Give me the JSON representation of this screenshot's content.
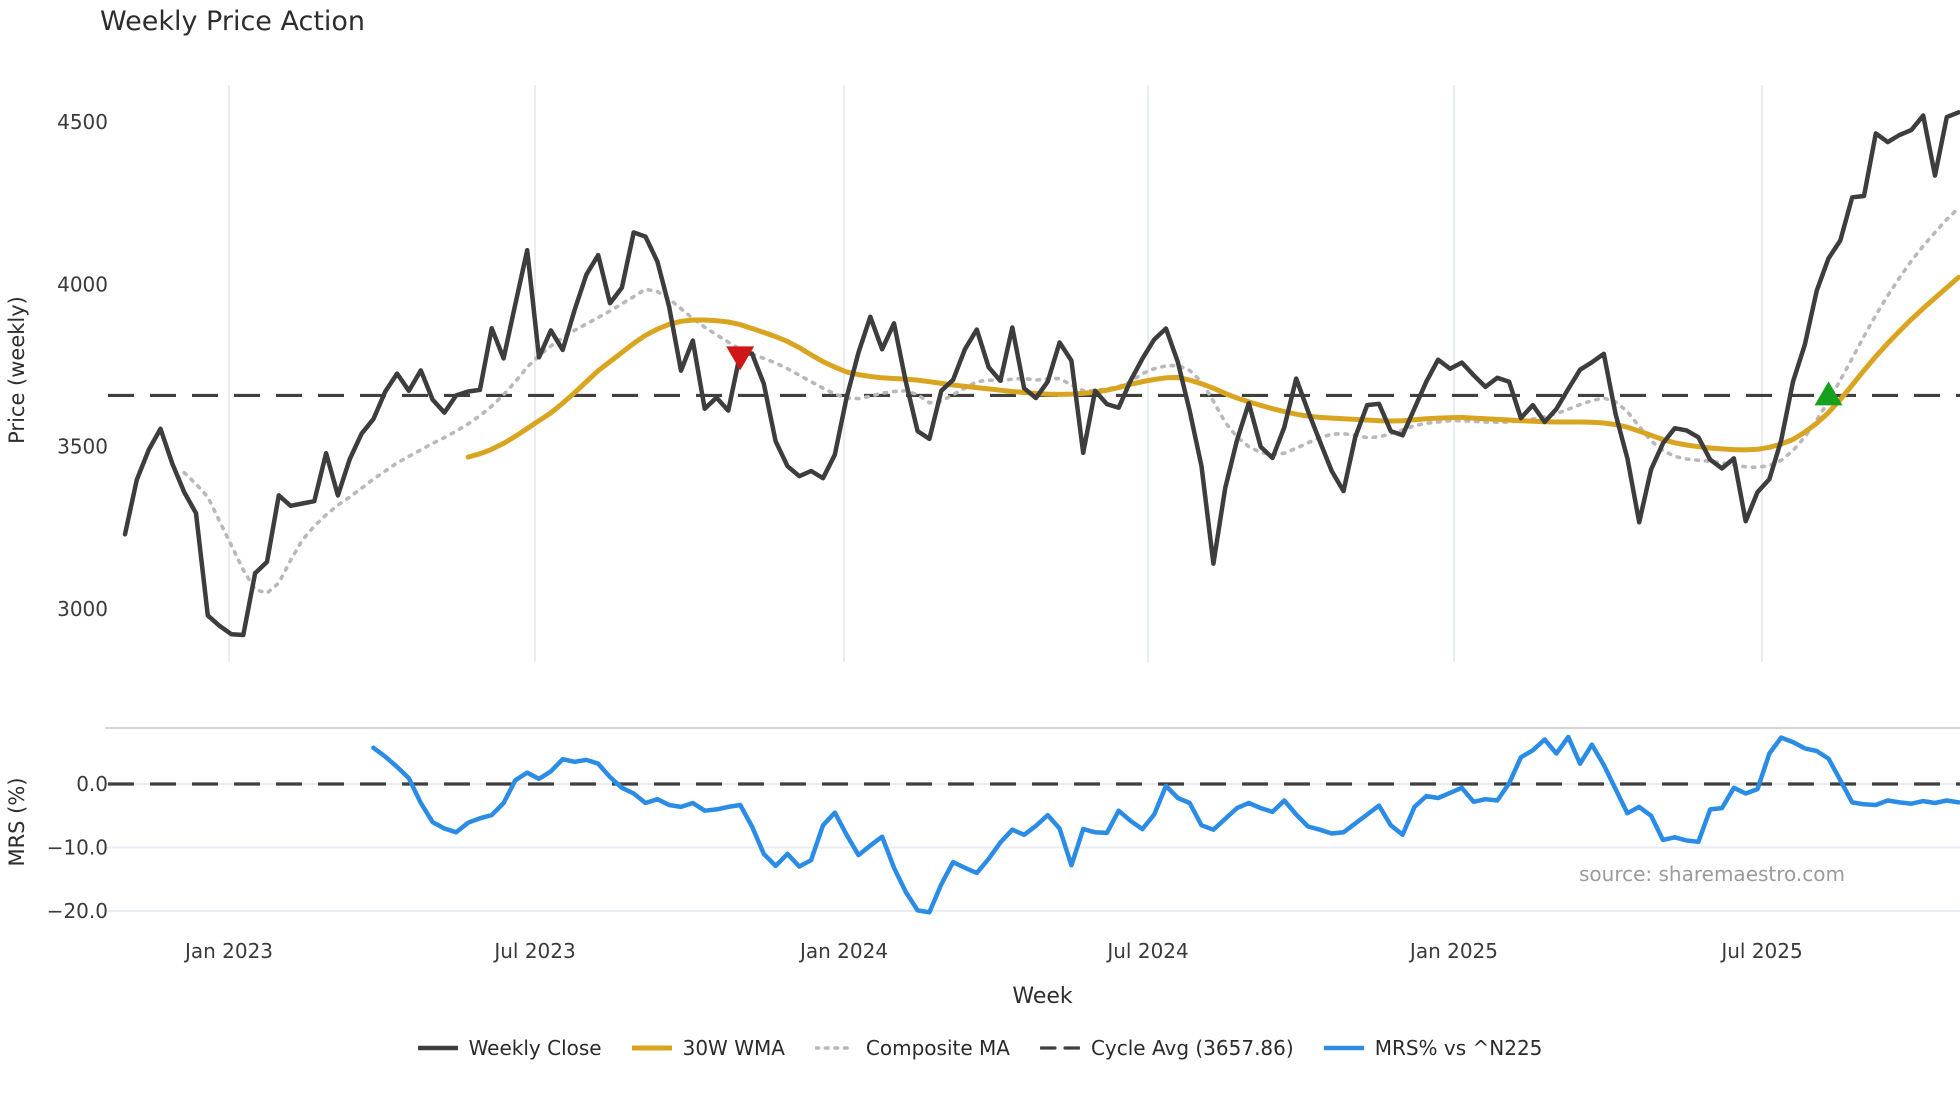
{
  "title": "Weekly Price Action",
  "source_text": "source: sharemaestro.com",
  "colors": {
    "close": "#3d3d3d",
    "wma": "#d9a521",
    "composite": "#b9b9b9",
    "cycle": "#3f3f3f",
    "mrs": "#2b8ce6",
    "sell_marker": "#cf1717",
    "buy_marker": "#17a01d",
    "grid": "#e9ecf2",
    "panel_border": "#d4d4d8",
    "tick_text": "#3a3a3a"
  },
  "legend": {
    "items": [
      {
        "label": "Weekly Close",
        "swatch": "solid-dark"
      },
      {
        "label": "30W WMA",
        "swatch": "solid-gold"
      },
      {
        "label": "Composite MA",
        "swatch": "dotted-grey"
      },
      {
        "label": "Cycle Avg (3657.86)",
        "swatch": "dashed-dark"
      },
      {
        "label": "MRS% vs ^N225",
        "swatch": "solid-blue"
      }
    ]
  },
  "chart_data": {
    "type": "line",
    "title": "Weekly Price Action",
    "xlabel": "Week",
    "x_is_weekly_index": true,
    "xticks": {
      "labels": [
        "Jan 2023",
        "Jul 2023",
        "Jan 2024",
        "Jul 2024",
        "Jan 2025",
        "Jul 2025"
      ],
      "week_index": [
        8.79,
        34.66,
        60.78,
        86.48,
        112.34,
        138.38
      ]
    },
    "price_panel": {
      "ylabel": "Price (weekly)",
      "yticks": [
        4500,
        4000,
        3500,
        3000
      ],
      "ylim": [
        2837,
        4614
      ],
      "cycle_avg": 3657.86,
      "grid": "vertical-only"
    },
    "mrs_panel": {
      "ylabel": "MRS (%)",
      "ytick_values": [
        0,
        -10,
        -20
      ],
      "ytick_labels": [
        "0.0",
        "−10.0",
        "−20.0"
      ],
      "ylim": [
        -21.5,
        8.8
      ],
      "zero_line": "dashed",
      "grid": "horizontal-only"
    },
    "markers": [
      {
        "type": "sell",
        "shape": "triangle-down",
        "week": 52,
        "price": 3775
      },
      {
        "type": "buy",
        "shape": "triangle-up",
        "week": 144,
        "price": 3657.86
      }
    ],
    "series": [
      {
        "name": "Weekly Close",
        "panel": "price",
        "values": [
          3230,
          3398,
          3490,
          3555,
          3448,
          3360,
          3295,
          2980,
          2948,
          2922,
          2920,
          3110,
          3145,
          3350,
          3318,
          3325,
          3332,
          3480,
          3350,
          3462,
          3540,
          3585,
          3670,
          3725,
          3672,
          3735,
          3645,
          3605,
          3658,
          3670,
          3675,
          3865,
          3772,
          3940,
          4105,
          3775,
          3858,
          3798,
          3920,
          4030,
          4090,
          3942,
          3990,
          4160,
          4147,
          4070,
          3930,
          3734,
          3827,
          3617,
          3651,
          3611,
          3787,
          3787,
          3694,
          3517,
          3440,
          3409,
          3425,
          3403,
          3475,
          3651,
          3790,
          3900,
          3800,
          3880,
          3700,
          3548,
          3524,
          3672,
          3706,
          3800,
          3861,
          3745,
          3703,
          3867,
          3680,
          3650,
          3700,
          3821,
          3765,
          3481,
          3672,
          3631,
          3620,
          3703,
          3771,
          3830,
          3864,
          3760,
          3610,
          3440,
          3140,
          3372,
          3520,
          3634,
          3500,
          3465,
          3560,
          3710,
          3610,
          3517,
          3425,
          3363,
          3530,
          3628,
          3632,
          3548,
          3535,
          3618,
          3700,
          3768,
          3740,
          3759,
          3720,
          3684,
          3712,
          3700,
          3588,
          3628,
          3576,
          3616,
          3678,
          3737,
          3760,
          3786,
          3600,
          3464,
          3267,
          3430,
          3510,
          3557,
          3550,
          3529,
          3460,
          3433,
          3464,
          3270,
          3360,
          3400,
          3520,
          3700,
          3815,
          3980,
          4080,
          4135,
          4268,
          4272,
          4465,
          4438,
          4460,
          4475,
          4520,
          4335,
          4515,
          4530
        ]
      },
      {
        "name": "30W WMA",
        "panel": "price",
        "values": [
          null,
          null,
          null,
          null,
          null,
          null,
          null,
          null,
          null,
          null,
          null,
          null,
          null,
          null,
          null,
          null,
          null,
          null,
          null,
          null,
          null,
          null,
          null,
          null,
          null,
          null,
          null,
          null,
          null,
          3468,
          3478,
          3492,
          3510,
          3532,
          3556,
          3580,
          3604,
          3634,
          3666,
          3700,
          3734,
          3762,
          3790,
          3818,
          3843,
          3862,
          3877,
          3886,
          3890,
          3890,
          3888,
          3884,
          3876,
          3864,
          3852,
          3839,
          3824,
          3805,
          3783,
          3762,
          3745,
          3730,
          3722,
          3716,
          3712,
          3710,
          3708,
          3705,
          3700,
          3695,
          3690,
          3686,
          3682,
          3678,
          3674,
          3670,
          3667,
          3664,
          3662,
          3661,
          3662,
          3664,
          3668,
          3674,
          3682,
          3692,
          3700,
          3707,
          3712,
          3713,
          3705,
          3694,
          3680,
          3664,
          3650,
          3638,
          3627,
          3617,
          3608,
          3600,
          3594,
          3590,
          3588,
          3586,
          3584,
          3582,
          3580,
          3579,
          3580,
          3583,
          3586,
          3588,
          3589,
          3590,
          3588,
          3586,
          3584,
          3582,
          3580,
          3578,
          3577,
          3576,
          3576,
          3576,
          3575,
          3573,
          3568,
          3560,
          3548,
          3535,
          3522,
          3512,
          3505,
          3500,
          3496,
          3493,
          3491,
          3490,
          3492,
          3498,
          3508,
          3522,
          3545,
          3572,
          3605,
          3645,
          3690,
          3735,
          3778,
          3818,
          3856,
          3892,
          3926,
          3958,
          3990,
          4022
        ]
      },
      {
        "name": "Composite MA",
        "panel": "price",
        "values": [
          null,
          null,
          null,
          null,
          null,
          3420,
          3385,
          3345,
          3270,
          3195,
          3120,
          3060,
          3049,
          3080,
          3150,
          3213,
          3255,
          3290,
          3320,
          3345,
          3372,
          3400,
          3425,
          3450,
          3470,
          3490,
          3510,
          3528,
          3548,
          3570,
          3595,
          3625,
          3660,
          3700,
          3745,
          3780,
          3810,
          3835,
          3858,
          3878,
          3898,
          3918,
          3940,
          3962,
          3985,
          3978,
          3955,
          3925,
          3895,
          3868,
          3845,
          3822,
          3800,
          3785,
          3772,
          3758,
          3740,
          3720,
          3700,
          3680,
          3662,
          3650,
          3648,
          3655,
          3665,
          3670,
          3672,
          3660,
          3635,
          3640,
          3660,
          3680,
          3700,
          3705,
          3703,
          3708,
          3710,
          3705,
          3709,
          3710,
          3690,
          3672,
          3673,
          3678,
          3685,
          3700,
          3725,
          3740,
          3749,
          3750,
          3735,
          3700,
          3640,
          3575,
          3530,
          3500,
          3482,
          3476,
          3480,
          3495,
          3512,
          3528,
          3538,
          3540,
          3535,
          3528,
          3530,
          3540,
          3552,
          3565,
          3572,
          3576,
          3580,
          3580,
          3578,
          3576,
          3575,
          3576,
          3580,
          3585,
          3592,
          3602,
          3615,
          3630,
          3642,
          3650,
          3638,
          3608,
          3562,
          3518,
          3488,
          3470,
          3462,
          3458,
          3455,
          3450,
          3444,
          3438,
          3436,
          3442,
          3458,
          3488,
          3530,
          3582,
          3640,
          3705,
          3772,
          3840,
          3905,
          3965,
          4020,
          4072,
          4118,
          4160,
          4200,
          4235
        ]
      },
      {
        "name": "MRS% vs ^N225",
        "panel": "mrs",
        "values": [
          null,
          null,
          null,
          null,
          null,
          null,
          null,
          null,
          null,
          null,
          null,
          null,
          null,
          null,
          null,
          null,
          null,
          null,
          null,
          null,
          null,
          5.7,
          4.3,
          2.7,
          0.9,
          -3.0,
          -6.0,
          -7.0,
          -7.6,
          -6.1,
          -5.4,
          -4.9,
          -3.0,
          0.6,
          1.8,
          0.8,
          2.0,
          3.9,
          3.5,
          3.8,
          3.2,
          1.1,
          -0.6,
          -1.5,
          -3.0,
          -2.4,
          -3.3,
          -3.6,
          -3.0,
          -4.2,
          -4.0,
          -3.6,
          -3.3,
          -6.7,
          -11.0,
          -12.9,
          -11.0,
          -13.0,
          -12.0,
          -6.5,
          -4.5,
          -8.0,
          -11.2,
          -9.7,
          -8.3,
          -13.2,
          -17.0,
          -19.9,
          -20.2,
          -15.8,
          -12.3,
          -13.2,
          -14.0,
          -11.8,
          -9.2,
          -7.2,
          -8.0,
          -6.6,
          -4.9,
          -7.0,
          -12.8,
          -7.1,
          -7.6,
          -7.7,
          -4.2,
          -5.8,
          -7.1,
          -4.8,
          -0.3,
          -2.2,
          -3.0,
          -6.5,
          -7.2,
          -5.5,
          -3.8,
          -3.0,
          -3.8,
          -4.4,
          -2.6,
          -4.8,
          -6.7,
          -7.2,
          -7.8,
          -7.6,
          -6.2,
          -4.8,
          -3.4,
          -6.5,
          -8.0,
          -3.6,
          -1.9,
          -2.2,
          -1.4,
          -0.6,
          -2.8,
          -2.4,
          -2.6,
          0.1,
          4.2,
          5.3,
          7.0,
          4.8,
          7.4,
          3.2,
          6.2,
          3.0,
          -0.8,
          -4.6,
          -3.6,
          -5.0,
          -8.8,
          -8.4,
          -8.9,
          -9.1,
          -4.0,
          -3.8,
          -0.6,
          -1.5,
          -0.8,
          4.8,
          7.3,
          6.6,
          5.6,
          5.2,
          4.0,
          0.6,
          -2.9,
          -3.2,
          -3.3,
          -2.6,
          -2.9,
          -3.1,
          -2.7,
          -3.0,
          -2.6,
          -2.9
        ]
      }
    ]
  }
}
